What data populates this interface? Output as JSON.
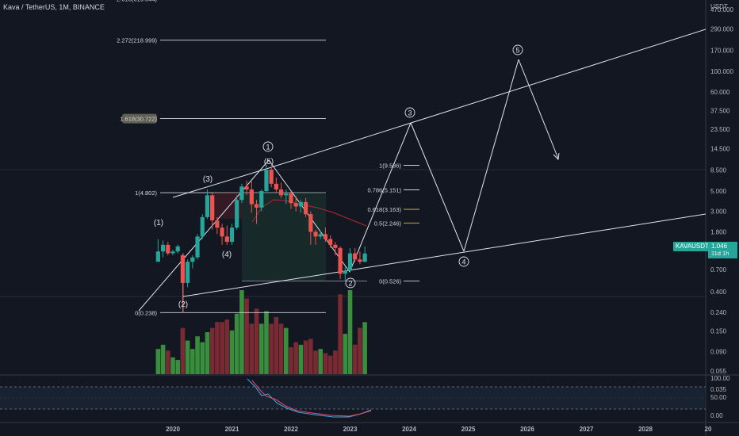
{
  "header": {
    "title": "Kava / TetherUS, 1M, BINANCE"
  },
  "colors": {
    "up": "#26a69a",
    "down": "#ef5350",
    "vol_up": "#388e3c",
    "vol_down": "#7a2a32",
    "bg": "#131722",
    "axis_text": "#b2b5be"
  },
  "price_axis": {
    "unit": "USDT",
    "ticks": [
      "750.000",
      "470.000",
      "290.000",
      "170.000",
      "100.000",
      "60.000",
      "37.500",
      "23.500",
      "14.500",
      "8.500",
      "5.000",
      "3.000",
      "1.800",
      "1.000",
      "0.700",
      "0.400",
      "0.240",
      "0.150",
      "0.090",
      "0.055",
      "0.035"
    ]
  },
  "time_axis": {
    "labels": [
      "2020",
      "2021",
      "2022",
      "2023",
      "2024",
      "2025",
      "2026",
      "2027",
      "2028",
      "20"
    ]
  },
  "rsi_axis": {
    "ticks": [
      "100.00",
      "50.00",
      "0.00"
    ]
  },
  "current": {
    "symbol": "KAVAUSDT",
    "price": "1.046",
    "countdown": "11d 1h"
  },
  "fib_extension": [
    {
      "label": "2.618(619.044)"
    },
    {
      "label": "2.272(218.999)"
    },
    {
      "label": "1.618(30.722)"
    },
    {
      "label": "1(4.802)"
    },
    {
      "label": "0(0.238)"
    }
  ],
  "fib_retracement": [
    {
      "label": "1(9.536)"
    },
    {
      "label": "0.786(5.151)"
    },
    {
      "label": "0.618(3.163)"
    },
    {
      "label": "0.5(2.246)"
    },
    {
      "label": "0(0.526)"
    }
  ],
  "wave_labels": {
    "minor": [
      "(1)",
      "(2)",
      "(3)",
      "(4)",
      "(5)"
    ],
    "major": [
      "1",
      "2",
      "3",
      "4",
      "5"
    ]
  },
  "chart_data": {
    "type": "candlestick",
    "title": "Kava / TetherUS, 1M, BINANCE",
    "y_scale": "log",
    "ylim": [
      0.03,
      750
    ],
    "xlim": [
      "2019-10",
      "2029-01"
    ],
    "ohlc": [
      {
        "t": "2019-10",
        "o": 0.85,
        "h": 1.5,
        "l": 0.9,
        "c": 1.1
      },
      {
        "t": "2019-11",
        "o": 1.1,
        "h": 1.45,
        "l": 0.95,
        "c": 1.3
      },
      {
        "t": "2019-12",
        "o": 1.3,
        "h": 1.4,
        "l": 1.0,
        "c": 1.05
      },
      {
        "t": "2020-01",
        "o": 1.05,
        "h": 1.15,
        "l": 1.0,
        "c": 1.1
      },
      {
        "t": "2020-02",
        "o": 1.1,
        "h": 1.3,
        "l": 1.05,
        "c": 1.25
      },
      {
        "t": "2020-03",
        "o": 1.0,
        "h": 1.05,
        "l": 0.238,
        "c": 0.5
      },
      {
        "t": "2020-04",
        "o": 0.5,
        "h": 0.9,
        "l": 0.45,
        "c": 0.85
      },
      {
        "t": "2020-05",
        "o": 0.85,
        "h": 1.0,
        "l": 0.72,
        "c": 0.95
      },
      {
        "t": "2020-06",
        "o": 0.95,
        "h": 1.7,
        "l": 0.9,
        "c": 1.6
      },
      {
        "t": "2020-07",
        "o": 1.6,
        "h": 2.8,
        "l": 1.5,
        "c": 2.6
      },
      {
        "t": "2020-08",
        "o": 2.6,
        "h": 5.2,
        "l": 2.5,
        "c": 4.5
      },
      {
        "t": "2020-09",
        "o": 4.5,
        "h": 4.802,
        "l": 1.9,
        "c": 2.4
      },
      {
        "t": "2020-10",
        "o": 2.4,
        "h": 2.6,
        "l": 1.7,
        "c": 2.0
      },
      {
        "t": "2020-11",
        "o": 2.0,
        "h": 2.2,
        "l": 1.3,
        "c": 1.6
      },
      {
        "t": "2020-12",
        "o": 1.6,
        "h": 2.1,
        "l": 1.3,
        "c": 1.4
      },
      {
        "t": "2021-01",
        "o": 1.4,
        "h": 2.2,
        "l": 1.3,
        "c": 2.0
      },
      {
        "t": "2021-02",
        "o": 2.0,
        "h": 4.5,
        "l": 1.9,
        "c": 4.0
      },
      {
        "t": "2021-03",
        "o": 4.0,
        "h": 6.0,
        "l": 3.7,
        "c": 5.6
      },
      {
        "t": "2021-04",
        "o": 5.6,
        "h": 6.5,
        "l": 4.5,
        "c": 5.2
      },
      {
        "t": "2021-05",
        "o": 5.2,
        "h": 6.4,
        "l": 2.9,
        "c": 3.6
      },
      {
        "t": "2021-06",
        "o": 3.6,
        "h": 4.0,
        "l": 2.2,
        "c": 3.3
      },
      {
        "t": "2021-07",
        "o": 3.3,
        "h": 5.2,
        "l": 3.0,
        "c": 5.0
      },
      {
        "t": "2021-08",
        "o": 5.0,
        "h": 9.536,
        "l": 4.8,
        "c": 8.5
      },
      {
        "t": "2021-09",
        "o": 8.5,
        "h": 9.2,
        "l": 5.5,
        "c": 6.0
      },
      {
        "t": "2021-10",
        "o": 6.0,
        "h": 7.0,
        "l": 4.8,
        "c": 5.2
      },
      {
        "t": "2021-11",
        "o": 5.2,
        "h": 6.2,
        "l": 4.2,
        "c": 4.5
      },
      {
        "t": "2021-12",
        "o": 4.5,
        "h": 5.2,
        "l": 3.6,
        "c": 4.7
      },
      {
        "t": "2022-01",
        "o": 4.7,
        "h": 5.0,
        "l": 3.2,
        "c": 3.7
      },
      {
        "t": "2022-02",
        "o": 3.7,
        "h": 4.4,
        "l": 3.0,
        "c": 3.4
      },
      {
        "t": "2022-03",
        "o": 3.4,
        "h": 4.0,
        "l": 2.9,
        "c": 3.8
      },
      {
        "t": "2022-04",
        "o": 3.8,
        "h": 4.2,
        "l": 2.6,
        "c": 2.8
      },
      {
        "t": "2022-05",
        "o": 2.8,
        "h": 3.0,
        "l": 1.3,
        "c": 1.8
      },
      {
        "t": "2022-06",
        "o": 1.8,
        "h": 1.9,
        "l": 1.3,
        "c": 1.6
      },
      {
        "t": "2022-07",
        "o": 1.6,
        "h": 1.85,
        "l": 1.5,
        "c": 1.7
      },
      {
        "t": "2022-08",
        "o": 1.7,
        "h": 2.0,
        "l": 1.4,
        "c": 1.5
      },
      {
        "t": "2022-09",
        "o": 1.5,
        "h": 1.65,
        "l": 1.2,
        "c": 1.3
      },
      {
        "t": "2022-10",
        "o": 1.3,
        "h": 1.4,
        "l": 1.0,
        "c": 1.2
      },
      {
        "t": "2022-11",
        "o": 1.2,
        "h": 1.25,
        "l": 0.55,
        "c": 0.63
      },
      {
        "t": "2022-12",
        "o": 0.63,
        "h": 0.75,
        "l": 0.526,
        "c": 0.68
      },
      {
        "t": "2023-01",
        "o": 0.68,
        "h": 1.2,
        "l": 0.65,
        "c": 1.05
      },
      {
        "t": "2023-02",
        "o": 1.05,
        "h": 1.2,
        "l": 0.85,
        "c": 0.9
      },
      {
        "t": "2023-03",
        "o": 0.9,
        "h": 1.1,
        "l": 0.8,
        "c": 0.85
      },
      {
        "t": "2023-04",
        "o": 0.85,
        "h": 1.25,
        "l": 0.84,
        "c": 1.046
      }
    ],
    "volume": [
      0.3,
      0.35,
      0.28,
      0.2,
      0.17,
      0.55,
      0.4,
      0.3,
      0.45,
      0.38,
      0.5,
      0.55,
      0.62,
      0.62,
      0.65,
      0.52,
      0.72,
      1.0,
      0.9,
      0.6,
      0.78,
      0.6,
      0.75,
      0.6,
      0.68,
      0.6,
      0.55,
      0.32,
      0.38,
      0.35,
      0.4,
      0.42,
      0.28,
      0.3,
      0.25,
      0.22,
      0.28,
      0.95,
      0.48,
      1.0,
      0.35,
      0.55,
      0.62
    ],
    "rsi_ylim": [
      0,
      100
    ]
  }
}
